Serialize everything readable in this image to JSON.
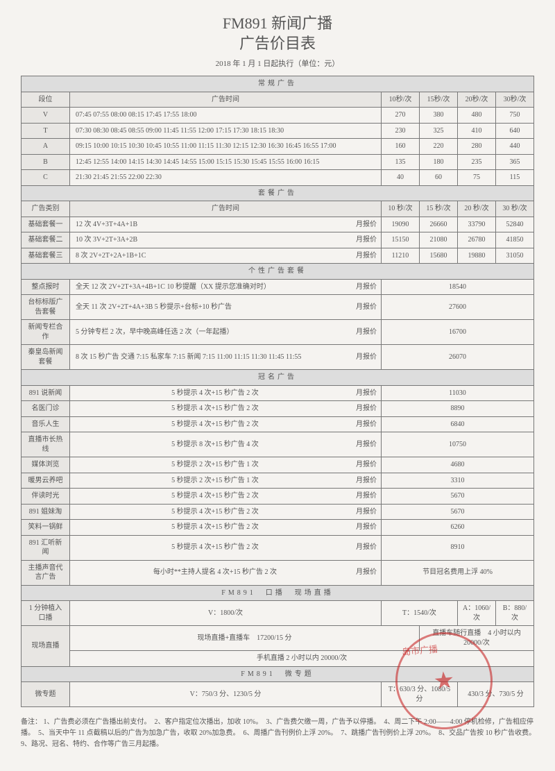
{
  "header": {
    "title_line1": "FM891 新闻广播",
    "title_line2": "广告价目表",
    "subtitle": "2018 年 1 月 1 日起执行（单位：元）"
  },
  "sections": {
    "regular": {
      "title": "常规广告",
      "cols": {
        "seg": "段位",
        "time": "广告时间",
        "p10": "10秒/次",
        "p15": "15秒/次",
        "p20": "20秒/次",
        "p30": "30秒/次"
      },
      "rows": [
        {
          "seg": "V",
          "times": "07:45  07:55  08:00  08:15  17:45  17:55  18:00",
          "p10": "270",
          "p15": "380",
          "p20": "480",
          "p30": "750"
        },
        {
          "seg": "T",
          "times": "07:30  08:30  08:45  08:55  09:00  11:45  11:55  12:00  17:15  17:30  18:15  18:30",
          "p10": "230",
          "p15": "325",
          "p20": "410",
          "p30": "640"
        },
        {
          "seg": "A",
          "times": "09:15  10:00  10:15  10:30  10:45  10:55  11:00  11:15  11:30  12:15  12:30  16:30  16:45  16:55  17:00",
          "p10": "160",
          "p15": "220",
          "p20": "280",
          "p30": "440"
        },
        {
          "seg": "B",
          "times": "12:45  12:55  14:00  14:15  14:30  14:45  14:55  15:00  15:15  15:30  15:45  15:55  16:00  16:15",
          "p10": "135",
          "p15": "180",
          "p20": "235",
          "p30": "365"
        },
        {
          "seg": "C",
          "times": "21:30  21:45  21:55  22:00  22:30",
          "p10": "40",
          "p15": "60",
          "p20": "75",
          "p30": "115"
        }
      ]
    },
    "package": {
      "title": "套餐广告",
      "cols": {
        "type": "广告类别",
        "time": "广告时间",
        "unit": "月报价",
        "p10": "10 秒/次",
        "p15": "15 秒/次",
        "p20": "20 秒/次",
        "p30": "30 秒/次"
      },
      "rows": [
        {
          "type": "基础套餐一",
          "time": "12 次 4V+3T+4A+1B",
          "p10": "19090",
          "p15": "26660",
          "p20": "33790",
          "p30": "52840"
        },
        {
          "type": "基础套餐二",
          "time": "10 次 3V+2T+3A+2B",
          "p10": "15150",
          "p15": "21080",
          "p20": "26780",
          "p30": "41850"
        },
        {
          "type": "基础套餐三",
          "time": "8 次 2V+2T+2A+1B+1C",
          "p10": "11210",
          "p15": "15680",
          "p20": "19880",
          "p30": "31050"
        }
      ]
    },
    "custom": {
      "title": "个性广告套餐",
      "unit": "月报价",
      "rows": [
        {
          "type": "整点报时",
          "time": "全天 12 次 2V+2T+3A+4B+1C 10 秒提醒（XX 提示您准确对时）",
          "price": "18540"
        },
        {
          "type": "台标标版广告套餐",
          "time": "全天 11 次 2V+2T+4A+3B 5 秒提示+台标+10 秒广告",
          "price": "27600"
        },
        {
          "type": "新闻专栏合作",
          "time": "5 分钟专栏 2 次，早中晚高峰任选 2 次（一年起播）",
          "price": "16700"
        },
        {
          "type": "秦皇岛新闻套餐",
          "time": "8 次 15 秒广告 交通 7:15 私家车 7:15 新闻 7:15 11:00 11:15 11:30 11:45 11:55",
          "price": "26070"
        }
      ]
    },
    "naming": {
      "title": "冠名广告",
      "unit": "月报价",
      "rows": [
        {
          "type": "891 说新闻",
          "time": "5 秒提示 4 次+15 秒广告 2 次",
          "price": "11030"
        },
        {
          "type": "名医门诊",
          "time": "5 秒提示 4 次+15 秒广告 2 次",
          "price": "8890"
        },
        {
          "type": "音乐人生",
          "time": "5 秒提示 4 次+15 秒广告 2 次",
          "price": "6840"
        },
        {
          "type": "直播市长热线",
          "time": "5 秒提示 8 次+15 秒广告 4 次",
          "price": "10750"
        },
        {
          "type": "媒体浏览",
          "time": "5 秒提示 2 次+15 秒广告 1 次",
          "price": "4680"
        },
        {
          "type": "暖男云养吧",
          "time": "5 秒提示 2 次+15 秒广告 1 次",
          "price": "3310"
        },
        {
          "type": "伴读时光",
          "time": "5 秒提示 4 次+15 秒广告 2 次",
          "price": "5670"
        },
        {
          "type": "891 姐妹淘",
          "time": "5 秒提示 4 次+15 秒广告 2 次",
          "price": "5670"
        },
        {
          "type": "笑料一锅鲜",
          "time": "5 秒提示 4 次+15 秒广告 2 次",
          "price": "6260"
        },
        {
          "type": "891 汇听新闻",
          "time": "5 秒提示 4 次+15 秒广告 2 次",
          "price": "8910"
        },
        {
          "type": "主播声音代言广告",
          "time": "每小时**主持人提名 4 次+15 秒广告 2 次",
          "price": "节目冠名费用上浮 40%"
        }
      ]
    },
    "live": {
      "title": "FM891　口播　现场直播",
      "row1": {
        "label": "1 分钟植入口播",
        "v": "V：1800/次",
        "t": "T：1540/次",
        "a": "A：1060/次",
        "b": "B：880/次"
      },
      "row2": {
        "label": "现场直播",
        "left": "现场直播+直播车　17200/15 分",
        "right": "直播车随行直播　4 小时以内 20000/次"
      },
      "row3": {
        "full": "手机直播 2 小时以内 20000/次"
      }
    },
    "micro": {
      "title": "FM891　微专题",
      "row": {
        "label": "微专题",
        "v": "V：750/3 分、1230/5 分",
        "t": "T：630/3 分、1080/5 分",
        "b": "430/3 分、730/5 分"
      }
    }
  },
  "notes": {
    "label": "备注：",
    "text": "1、广告费必须在广告播出前支付。　2、客户指定位次播出，加收 10%。　3、广告费欠缴一周，广告予以停播。　4、周二下午 2:00——4:00 停机检修，广告相应停播。　5、当天中午 11 点截稿以后的广告为加急广告，收取 20%加急费。　6、周播广告刊例价上浮 20%。　7、跳播广告刊例价上浮 20%。　8、交品广告按 10 秒广告收费。　9、路况、冠名、特约、合作等广告三月起播。"
  },
  "stamp": {
    "text": "岛市广播",
    "sub": "秦皇"
  }
}
